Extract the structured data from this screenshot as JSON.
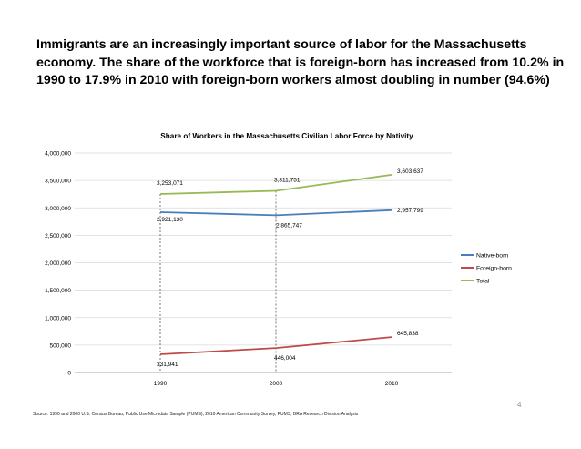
{
  "headline": "Immigrants are an increasingly important source of labor for the Massachusetts economy. The share of the workforce that is foreign-born has increased from 10.2% in 1990 to 17.9% in 2010 with foreign-born workers almost doubling in number (94.6%)",
  "chart_data": {
    "type": "line",
    "title": "Share of Workers in the Massachusetts Civilian Labor Force by Nativity",
    "categories": [
      "1990",
      "2000",
      "2010"
    ],
    "ylim": [
      0,
      4000000
    ],
    "yticks": [
      0,
      500000,
      1000000,
      1500000,
      2000000,
      2500000,
      3000000,
      3500000,
      4000000
    ],
    "ytick_labels": [
      "0",
      "500,000",
      "1,000,000",
      "1,500,000",
      "2,000,000",
      "2,500,000",
      "3,000,000",
      "3,500,000",
      "4,000,000"
    ],
    "xlabel": "",
    "ylabel": "",
    "grid": true,
    "legend_position": "right",
    "series": [
      {
        "name": "Native-born",
        "color": "#4A7EBB",
        "values": [
          2921130,
          2865747,
          2957799
        ],
        "labels": [
          "2,921,130",
          "2,865,747",
          "2,957,799"
        ]
      },
      {
        "name": "Foreign-born",
        "color": "#BE4B48",
        "values": [
          331941,
          446004,
          645838
        ],
        "labels": [
          "331,941",
          "446,004",
          "645,838"
        ]
      },
      {
        "name": "Total",
        "color": "#98B954",
        "values": [
          3253071,
          3311751,
          3603637
        ],
        "labels": [
          "3,253,071",
          "3,311,751",
          "3,603,637"
        ]
      }
    ]
  },
  "footer": {
    "source": "Source: 1990 and 2000 U.S. Census Bureau, Public Use Microdata Sample (PUMS), 2010 American Community Survey, PUMS, BRA Research Division Analysis",
    "page_number": "4"
  }
}
